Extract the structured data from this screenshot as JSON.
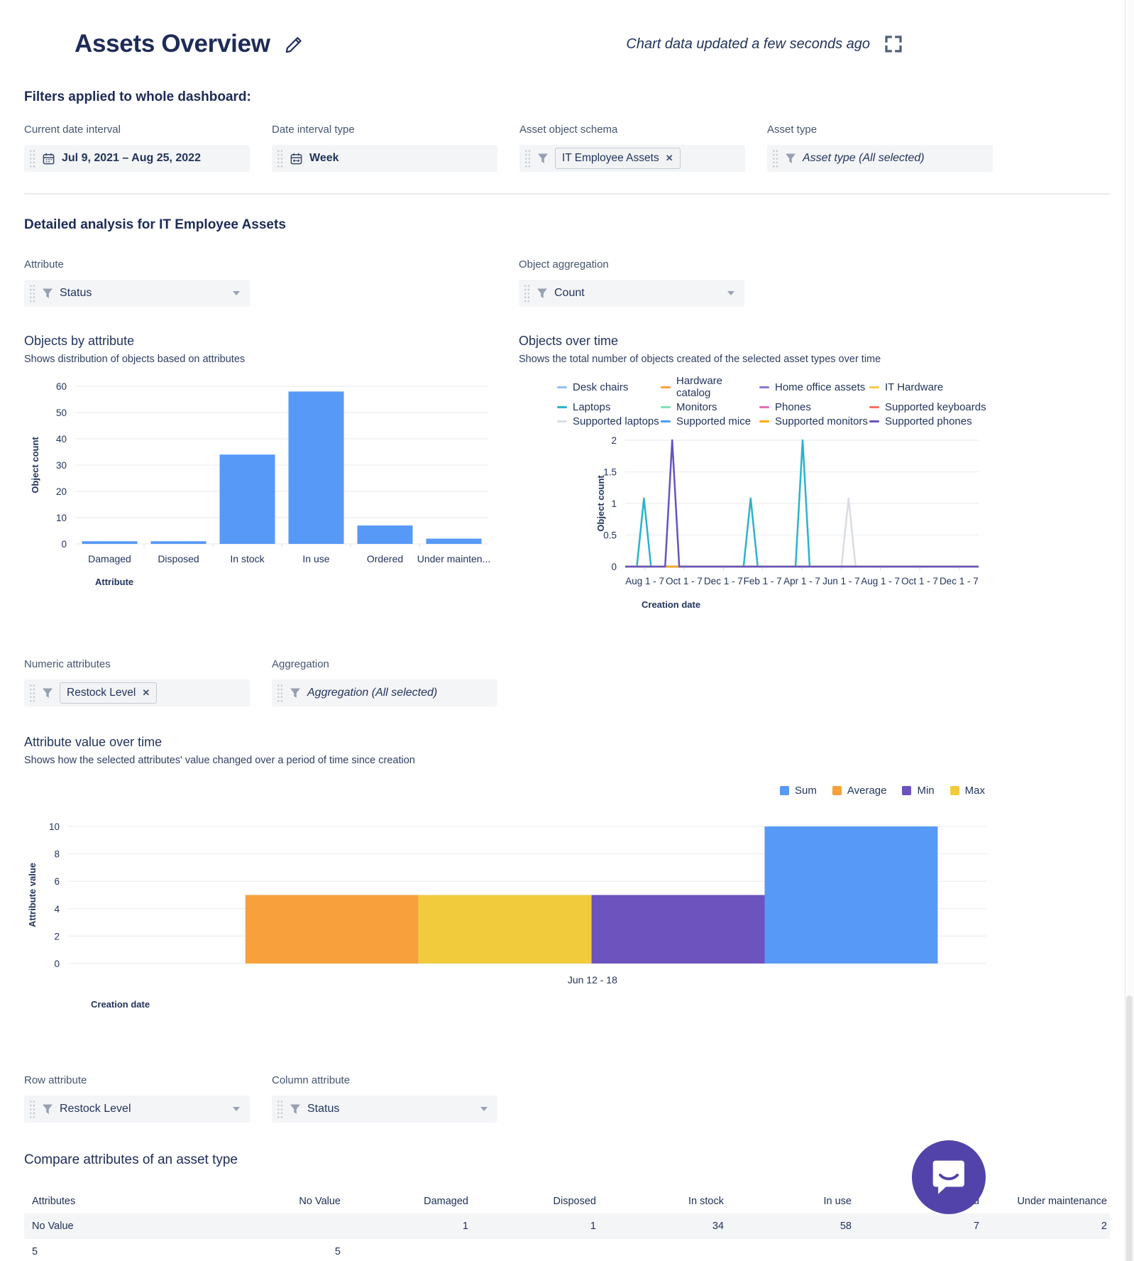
{
  "header": {
    "title": "Assets Overview",
    "updated": "Chart data updated a few seconds ago"
  },
  "filters": {
    "heading": "Filters applied to whole dashboard:",
    "items": [
      {
        "label": "Current date interval",
        "value": "Jul 9, 2021  –  Aug 25, 2022",
        "icon": "calendar-icon"
      },
      {
        "label": "Date interval type",
        "value": "Week",
        "icon": "calendar-week-icon"
      },
      {
        "label": "Asset object schema",
        "chip": "IT Employee Assets",
        "icon": "filter-icon"
      },
      {
        "label": "Asset type",
        "value": "Asset type (All selected)",
        "icon": "filter-icon"
      }
    ]
  },
  "section": {
    "heading": "Detailed analysis for IT Employee Assets"
  },
  "controls": {
    "attribute": {
      "label": "Attribute",
      "value": "Status"
    },
    "aggregation": {
      "label": "Object aggregation",
      "value": "Count"
    },
    "numeric": {
      "label": "Numeric attributes",
      "chip": "Restock Level"
    },
    "aggregation2": {
      "label": "Aggregation",
      "value": "Aggregation (All selected)"
    },
    "row_attr": {
      "label": "Row attribute",
      "value": "Restock Level"
    },
    "col_attr": {
      "label": "Column attribute",
      "value": "Status"
    }
  },
  "chart_data": [
    {
      "id": "objects-by-attribute",
      "type": "bar",
      "title": "Objects by attribute",
      "subtitle": "Shows distribution of objects based on attributes",
      "categories": [
        "Damaged",
        "Disposed",
        "In stock",
        "In use",
        "Ordered",
        "Under mainten..."
      ],
      "values": [
        1,
        1,
        34,
        58,
        7,
        2
      ],
      "xlabel": "Attribute",
      "ylabel": "Object count",
      "ylim": [
        0,
        60
      ],
      "yticks": [
        0,
        10,
        20,
        30,
        40,
        50,
        60
      ],
      "bar_color": "#5799F7",
      "grid": true,
      "legend": "none"
    },
    {
      "id": "objects-over-time",
      "type": "line",
      "title": "Objects over time",
      "subtitle": "Shows the total number of objects created of the selected asset types over time",
      "xlabel": "Creation date",
      "ylabel": "Object count",
      "ylim": [
        0,
        2
      ],
      "yticks": [
        0,
        0.5,
        1,
        1.5,
        2
      ],
      "xticks": [
        "Aug 1 - 7",
        "Oct 1 - 7",
        "Dec 1 - 7",
        "Feb 1 - 7",
        "Apr 1 - 7",
        "Jun 1 - 7",
        "Aug 1 - 7",
        "Oct 1 - 7",
        "Dec 1 - 7"
      ],
      "grid": true,
      "legend": "top",
      "series": [
        {
          "name": "Desk chairs",
          "color": "#8FBFF8",
          "spikes": []
        },
        {
          "name": "Hardware catalog",
          "color": "#FBA23C",
          "spikes": []
        },
        {
          "name": "Home office assets",
          "color": "#8777D9",
          "spikes": []
        },
        {
          "name": "IT Hardware",
          "color": "#F7CA45",
          "spikes": []
        },
        {
          "name": "Laptops",
          "color": "#2AB3CC",
          "spikes": [
            {
              "x": 0.053,
              "v": 1
            },
            {
              "x": 0.355,
              "v": 1
            },
            {
              "x": 0.502,
              "v": 2
            }
          ]
        },
        {
          "name": "Monitors",
          "color": "#7EE2B8",
          "spikes": []
        },
        {
          "name": "Phones",
          "color": "#E670B2",
          "spikes": []
        },
        {
          "name": "Supported keyboards",
          "color": "#F87060",
          "spikes": []
        },
        {
          "name": "Supported laptops",
          "color": "#D8DDE3",
          "spikes": [
            {
              "x": 0.632,
              "v": 1
            }
          ]
        },
        {
          "name": "Supported mice",
          "color": "#4C9AFF",
          "spikes": []
        },
        {
          "name": "Supported monitors",
          "color": "#FBA910",
          "spikes": []
        },
        {
          "name": "Supported phones",
          "color": "#6553C0",
          "spikes": [
            {
              "x": 0.133,
              "v": 2
            }
          ]
        }
      ]
    },
    {
      "id": "attribute-value-over-time",
      "type": "bar",
      "title": "Attribute value over time",
      "subtitle": "Shows how the selected attributes' value changed over a period of time since creation",
      "categories": [
        "Jun 12 - 18"
      ],
      "series": [
        {
          "name": "Sum",
          "color": "#5799F7",
          "values": [
            10
          ]
        },
        {
          "name": "Average",
          "color": "#F7A03C",
          "values": [
            5
          ]
        },
        {
          "name": "Min",
          "color": "#6C53BE",
          "values": [
            5
          ]
        },
        {
          "name": "Max",
          "color": "#F2CB3D",
          "values": [
            5
          ]
        }
      ],
      "bar_order": [
        "Average",
        "Max",
        "Min",
        "Sum"
      ],
      "xlabel": "Creation date",
      "ylabel": "Attribute value",
      "ylim": [
        0,
        10
      ],
      "yticks": [
        0,
        2,
        4,
        6,
        8,
        10
      ],
      "grid": true,
      "legend": "top-right"
    }
  ],
  "table": {
    "heading": "Compare attributes of an asset type",
    "headers": [
      "Attributes",
      "No Value",
      "Damaged",
      "Disposed",
      "In stock",
      "In use",
      "Ordered",
      "Under maintenance"
    ],
    "rows": [
      {
        "cells": [
          "No Value",
          "",
          "1",
          "1",
          "34",
          "58",
          "7",
          "2"
        ],
        "shaded": true
      },
      {
        "cells": [
          "5",
          "5",
          "",
          "",
          "",
          "",
          "",
          ""
        ],
        "shaded": false
      }
    ]
  }
}
